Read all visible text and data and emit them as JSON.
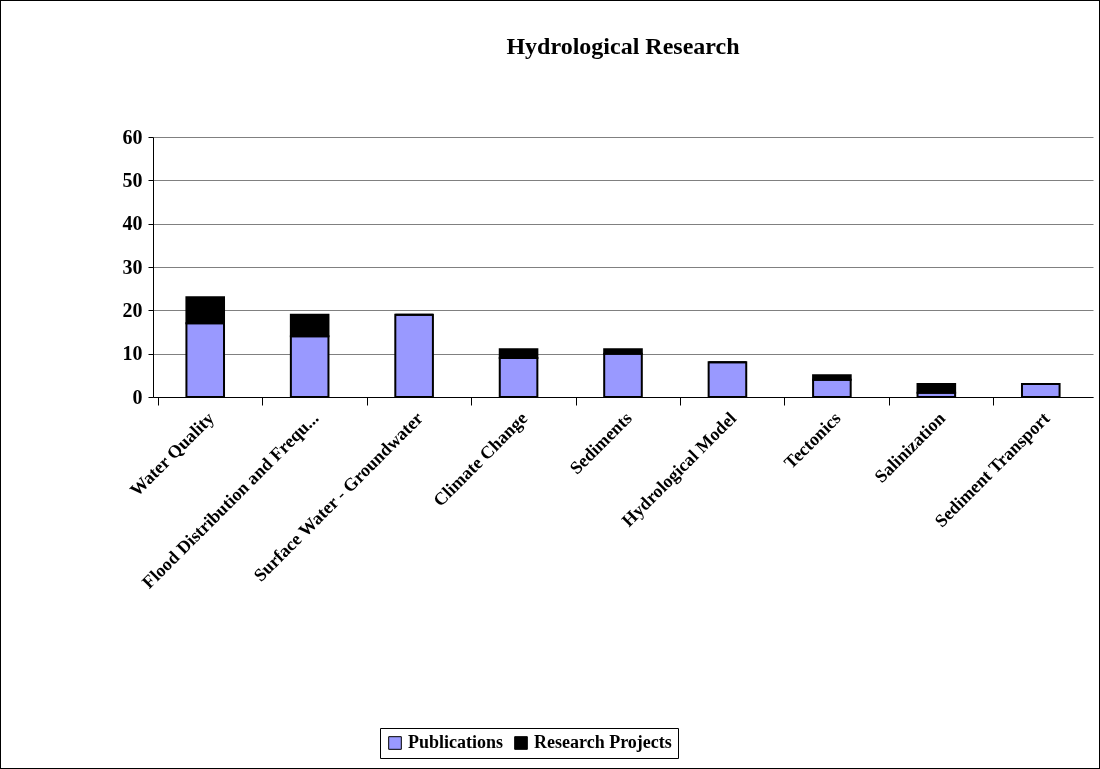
{
  "chart_data": {
    "type": "bar",
    "title": "Hydrological Research",
    "categories": [
      "Water Quality",
      "Flood Distribution and Frequ...",
      "Surface Water - Groundwater",
      "Climate Change",
      "Sediments",
      "Hydrological Model",
      "Tectonics",
      "Salinization",
      "Sediment Transport"
    ],
    "series": [
      {
        "name": "Publications",
        "color": "#9999ff",
        "values": [
          17,
          14,
          19,
          9,
          10,
          8,
          4,
          1,
          3
        ]
      },
      {
        "name": "Research Projects",
        "color": "#000000",
        "values": [
          6,
          5,
          0,
          2,
          1,
          0,
          1,
          2,
          0
        ]
      }
    ],
    "stacked": true,
    "ylim": [
      0,
      60
    ],
    "yticks": [
      0,
      10,
      20,
      30,
      40,
      50,
      60
    ],
    "grid": "y",
    "legend": "bottom"
  }
}
